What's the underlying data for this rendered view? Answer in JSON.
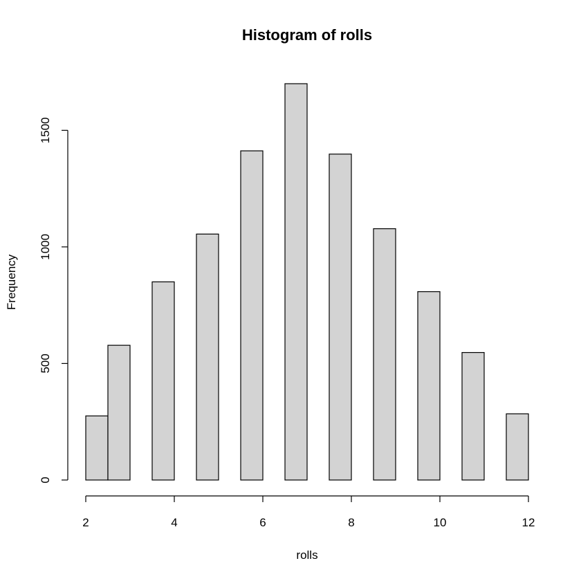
{
  "chart_data": {
    "type": "bar",
    "title": "Histogram of rolls",
    "xlabel": "rolls",
    "ylabel": "Frequency",
    "bins": [
      {
        "start": 2.0,
        "end": 2.5,
        "count": 275
      },
      {
        "start": 2.5,
        "end": 3.0,
        "count": 578
      },
      {
        "start": 3.5,
        "end": 4.0,
        "count": 850
      },
      {
        "start": 4.5,
        "end": 5.0,
        "count": 1055
      },
      {
        "start": 5.5,
        "end": 6.0,
        "count": 1412
      },
      {
        "start": 6.5,
        "end": 7.0,
        "count": 1700
      },
      {
        "start": 7.5,
        "end": 8.0,
        "count": 1398
      },
      {
        "start": 8.5,
        "end": 9.0,
        "count": 1078
      },
      {
        "start": 9.5,
        "end": 10.0,
        "count": 808
      },
      {
        "start": 10.5,
        "end": 11.0,
        "count": 547
      },
      {
        "start": 11.5,
        "end": 12.0,
        "count": 284
      }
    ],
    "xlim": [
      2,
      12
    ],
    "ylim": [
      0,
      1700
    ],
    "x_ticks": [
      "2",
      "4",
      "6",
      "8",
      "10",
      "12"
    ],
    "y_ticks": [
      "0",
      "500",
      "1000",
      "1500"
    ],
    "grid": false,
    "legend": "none",
    "bar_color": "#d3d3d3",
    "edge_color": "#000000"
  }
}
